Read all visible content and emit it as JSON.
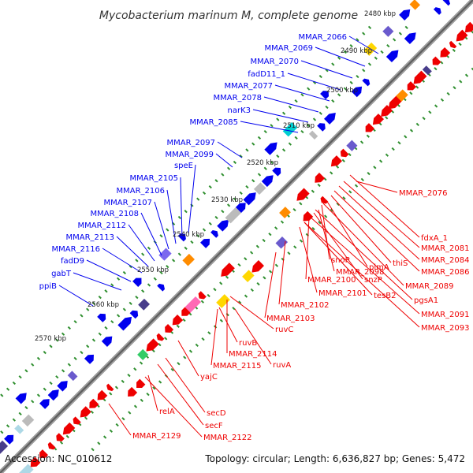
{
  "title": "Mycobacterium marinum M, complete genome",
  "footer": {
    "accession": "Accession: NC_010612",
    "topology": "Topology: circular; Length: 6,636,827 bp; Genes: 5,472"
  },
  "colors": {
    "plus_strand": "#0000ee",
    "minus_strand": "#ee0000",
    "backbone": "#888888",
    "tick_dots": "#2f8f2f"
  },
  "scale_ticks": [
    "2480 kbp",
    "2490 kbp",
    "2500 kbp",
    "2510 kbp",
    "2520 kbp",
    "2530 kbp",
    "2540 kbp",
    "2550 kbp",
    "2560 kbp",
    "2570 kbp"
  ],
  "blue_labels": [
    "MMAR_2066",
    "MMAR_2069",
    "MMAR_2070",
    "fadD11_1",
    "MMAR_2077",
    "MMAR_2078",
    "narK3",
    "MMAR_2085",
    "MMAR_2097",
    "MMAR_2099",
    "speE",
    "MMAR_2105",
    "MMAR_2106",
    "MMAR_2107",
    "MMAR_2108",
    "MMAR_2112",
    "MMAR_2113",
    "MMAR_2116",
    "fadD9",
    "gabT",
    "ppiB"
  ],
  "red_labels": [
    "MMAR_2076",
    "fdxA_1",
    "MMAR_2081",
    "MMAR_2084",
    "MMAR_2086",
    "thiS",
    "pimA",
    "snoP",
    "MMAR_2098",
    "snzP",
    "MMAR_2089",
    "MMAR_2100",
    "tesB2",
    "pgsA1",
    "MMAR_2101",
    "MMAR_2091",
    "MMAR_2102",
    "MMAR_2093",
    "MMAR_2103",
    "ruvC",
    "ruvB",
    "MMAR_2114",
    "ruvA",
    "MMAR_2115",
    "yajC",
    "secD",
    "relA",
    "secF",
    "MMAR_2122",
    "MMAR_2129"
  ]
}
